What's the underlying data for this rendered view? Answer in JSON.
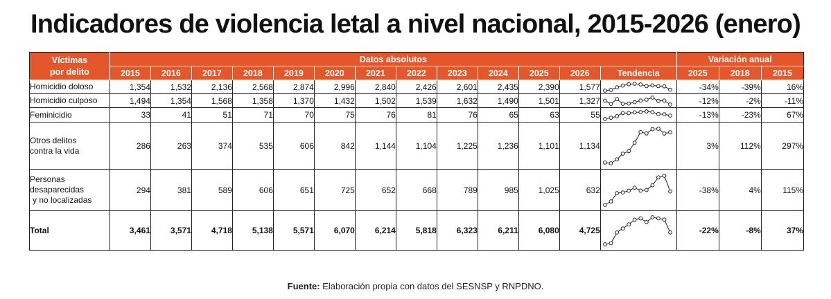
{
  "title": "Indicadores de violencia letal a nivel nacional, 2015-2026 (enero)",
  "header": {
    "victimas": "Víctimas",
    "por_delito": "por delito",
    "datos_absolutos": "Datos absolutos",
    "variacion_anual": "Variación anual",
    "tendencia": "Tendencia",
    "years": [
      "2015",
      "2016",
      "2017",
      "2018",
      "2019",
      "2020",
      "2021",
      "2022",
      "2023",
      "2024",
      "2025",
      "2026"
    ],
    "var_years": [
      "2025",
      "2018",
      "2015"
    ]
  },
  "rows": [
    {
      "label_lines": [
        "Homicidio doloso"
      ],
      "values": [
        "1,354",
        "1,532",
        "2,136",
        "2,568",
        "2,874",
        "2,996",
        "2,840",
        "2,426",
        "2,601",
        "2,435",
        "2,390",
        "1,577"
      ],
      "trend": [
        1354,
        1532,
        2136,
        2568,
        2874,
        2996,
        2840,
        2426,
        2601,
        2435,
        2390,
        1577
      ],
      "variation": [
        "-34%",
        "-39%",
        "16%"
      ]
    },
    {
      "label_lines": [
        "Homicidio culposo"
      ],
      "values": [
        "1,494",
        "1,354",
        "1,568",
        "1,358",
        "1,370",
        "1,432",
        "1,502",
        "1,539",
        "1,632",
        "1,490",
        "1,501",
        "1,327"
      ],
      "trend": [
        1494,
        1354,
        1568,
        1358,
        1370,
        1432,
        1502,
        1539,
        1632,
        1490,
        1501,
        1327
      ],
      "variation": [
        "-12%",
        "-2%",
        "-11%"
      ]
    },
    {
      "label_lines": [
        "Feminicidio"
      ],
      "values": [
        "33",
        "41",
        "51",
        "71",
        "70",
        "75",
        "76",
        "81",
        "76",
        "65",
        "63",
        "55"
      ],
      "trend": [
        33,
        41,
        51,
        71,
        70,
        75,
        76,
        81,
        76,
        65,
        63,
        55
      ],
      "variation": [
        "-13%",
        "-23%",
        "67%"
      ]
    },
    {
      "label_lines": [
        "Otros delitos",
        "contra la vida"
      ],
      "values": [
        "286",
        "263",
        "374",
        "535",
        "606",
        "842",
        "1,144",
        "1,104",
        "1,225",
        "1,236",
        "1,101",
        "1,134"
      ],
      "trend": [
        286,
        263,
        374,
        535,
        606,
        842,
        1144,
        1104,
        1225,
        1236,
        1101,
        1134
      ],
      "variation": [
        "3%",
        "112%",
        "297%"
      ]
    },
    {
      "label_lines": [
        "Personas",
        "desaparecidas",
        " y no localizadas"
      ],
      "values": [
        "294",
        "381",
        "589",
        "606",
        "651",
        "725",
        "652",
        "668",
        "789",
        "985",
        "1,025",
        "632"
      ],
      "trend": [
        294,
        381,
        589,
        606,
        651,
        725,
        652,
        668,
        789,
        985,
        1025,
        632
      ],
      "variation": [
        "-38%",
        "4%",
        "115%"
      ]
    },
    {
      "label_lines": [
        "Total"
      ],
      "values": [
        "3,461",
        "3,571",
        "4,718",
        "5,138",
        "5,571",
        "6,070",
        "6,214",
        "5,818",
        "6,323",
        "6,211",
        "6,080",
        "4,725"
      ],
      "trend": [
        3461,
        3571,
        4718,
        5138,
        5571,
        6070,
        6214,
        5818,
        6323,
        6211,
        6080,
        4725
      ],
      "variation": [
        "-22%",
        "-8%",
        "37%"
      ]
    }
  ],
  "source": {
    "label": "Fuente:",
    "text": " Elaboración propia con datos del SESNSP y RNPDNO."
  },
  "colors": {
    "header_bg": "#e4572c",
    "header_text": "#ffffff",
    "border": "#222222"
  }
}
